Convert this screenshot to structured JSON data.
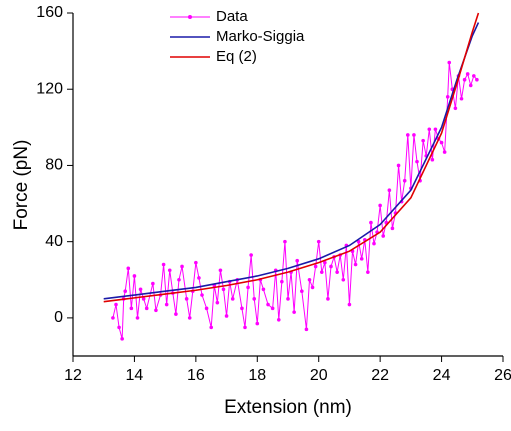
{
  "chart_data": {
    "type": "line",
    "x_label": "Extension (nm)",
    "y_label": "Force (pN)",
    "xlim": [
      12,
      26
    ],
    "ylim": [
      -20,
      160
    ],
    "xticks": [
      12,
      14,
      16,
      18,
      20,
      22,
      24,
      26
    ],
    "yticks": [
      0,
      40,
      80,
      120,
      160
    ],
    "legend": "upper-left",
    "series": [
      {
        "name": "Data",
        "color": "#ff00ff",
        "marker": true,
        "x": [
          13.3,
          13.4,
          13.5,
          13.6,
          13.65,
          13.7,
          13.8,
          13.9,
          14.0,
          14.1,
          14.2,
          14.3,
          14.4,
          14.6,
          14.7,
          14.85,
          14.95,
          15.05,
          15.15,
          15.25,
          15.35,
          15.45,
          15.55,
          15.7,
          15.8,
          15.9,
          16.0,
          16.1,
          16.2,
          16.35,
          16.5,
          16.6,
          16.7,
          16.8,
          16.9,
          17.0,
          17.1,
          17.2,
          17.35,
          17.5,
          17.6,
          17.7,
          17.8,
          17.9,
          18.0,
          18.1,
          18.2,
          18.35,
          18.5,
          18.6,
          18.7,
          18.8,
          18.9,
          19.0,
          19.1,
          19.2,
          19.3,
          19.45,
          19.6,
          19.7,
          19.8,
          19.9,
          20.0,
          20.1,
          20.2,
          20.3,
          20.4,
          20.5,
          20.6,
          20.7,
          20.8,
          20.9,
          21.0,
          21.1,
          21.2,
          21.3,
          21.4,
          21.5,
          21.6,
          21.7,
          21.8,
          21.9,
          22.0,
          22.1,
          22.2,
          22.3,
          22.4,
          22.5,
          22.6,
          22.7,
          22.8,
          22.9,
          23.0,
          23.1,
          23.2,
          23.3,
          23.4,
          23.5,
          23.6,
          23.7,
          23.8,
          23.9,
          24.0,
          24.1,
          24.2,
          24.25,
          24.35,
          24.45,
          24.55,
          24.65,
          24.75,
          24.85,
          24.95,
          25.05,
          25.15
        ],
        "values": [
          0,
          7,
          -5,
          -11,
          10,
          14,
          26,
          5,
          22,
          0,
          15,
          10,
          5,
          18,
          4,
          12,
          28,
          7,
          25,
          13,
          2,
          20,
          27,
          10,
          0,
          14,
          29,
          21,
          12,
          5,
          -5,
          17,
          8,
          25,
          15,
          1,
          19,
          10,
          20,
          5,
          -5,
          16,
          33,
          10,
          -3,
          20,
          15,
          7,
          5,
          25,
          -1,
          19,
          40,
          10,
          24,
          3,
          30,
          14,
          -6,
          20,
          16,
          27,
          40,
          24,
          29,
          10,
          27,
          32,
          24,
          33,
          20,
          38,
          7,
          35,
          28,
          40,
          31,
          41,
          24,
          50,
          39,
          45,
          59,
          43,
          50,
          67,
          47,
          55,
          80,
          61,
          72,
          96,
          68,
          96,
          82,
          72,
          93,
          85,
          99,
          83,
          99,
          94,
          92,
          87,
          116,
          134,
          120,
          110,
          127,
          115,
          125,
          128,
          122,
          127,
          125
        ]
      },
      {
        "name": "Marko-Siggia",
        "color": "#1a1aa8",
        "marker": false,
        "x": [
          13,
          14,
          15,
          16,
          17,
          18,
          19,
          20,
          21,
          22,
          23,
          24,
          24.5,
          25,
          25.2
        ],
        "values": [
          10,
          12,
          14,
          16,
          19,
          22,
          26,
          31,
          38,
          49,
          67,
          100,
          125,
          148,
          155
        ]
      },
      {
        "name": "Eq (2)",
        "color": "#e00000",
        "marker": false,
        "x": [
          13,
          14,
          15,
          16,
          17,
          18,
          19,
          20,
          21,
          22,
          23,
          24,
          24.5,
          25,
          25.2
        ],
        "values": [
          8.5,
          10.5,
          12.5,
          14.5,
          17,
          20,
          24,
          29,
          35,
          45,
          63,
          97,
          123,
          150,
          160
        ]
      }
    ]
  }
}
